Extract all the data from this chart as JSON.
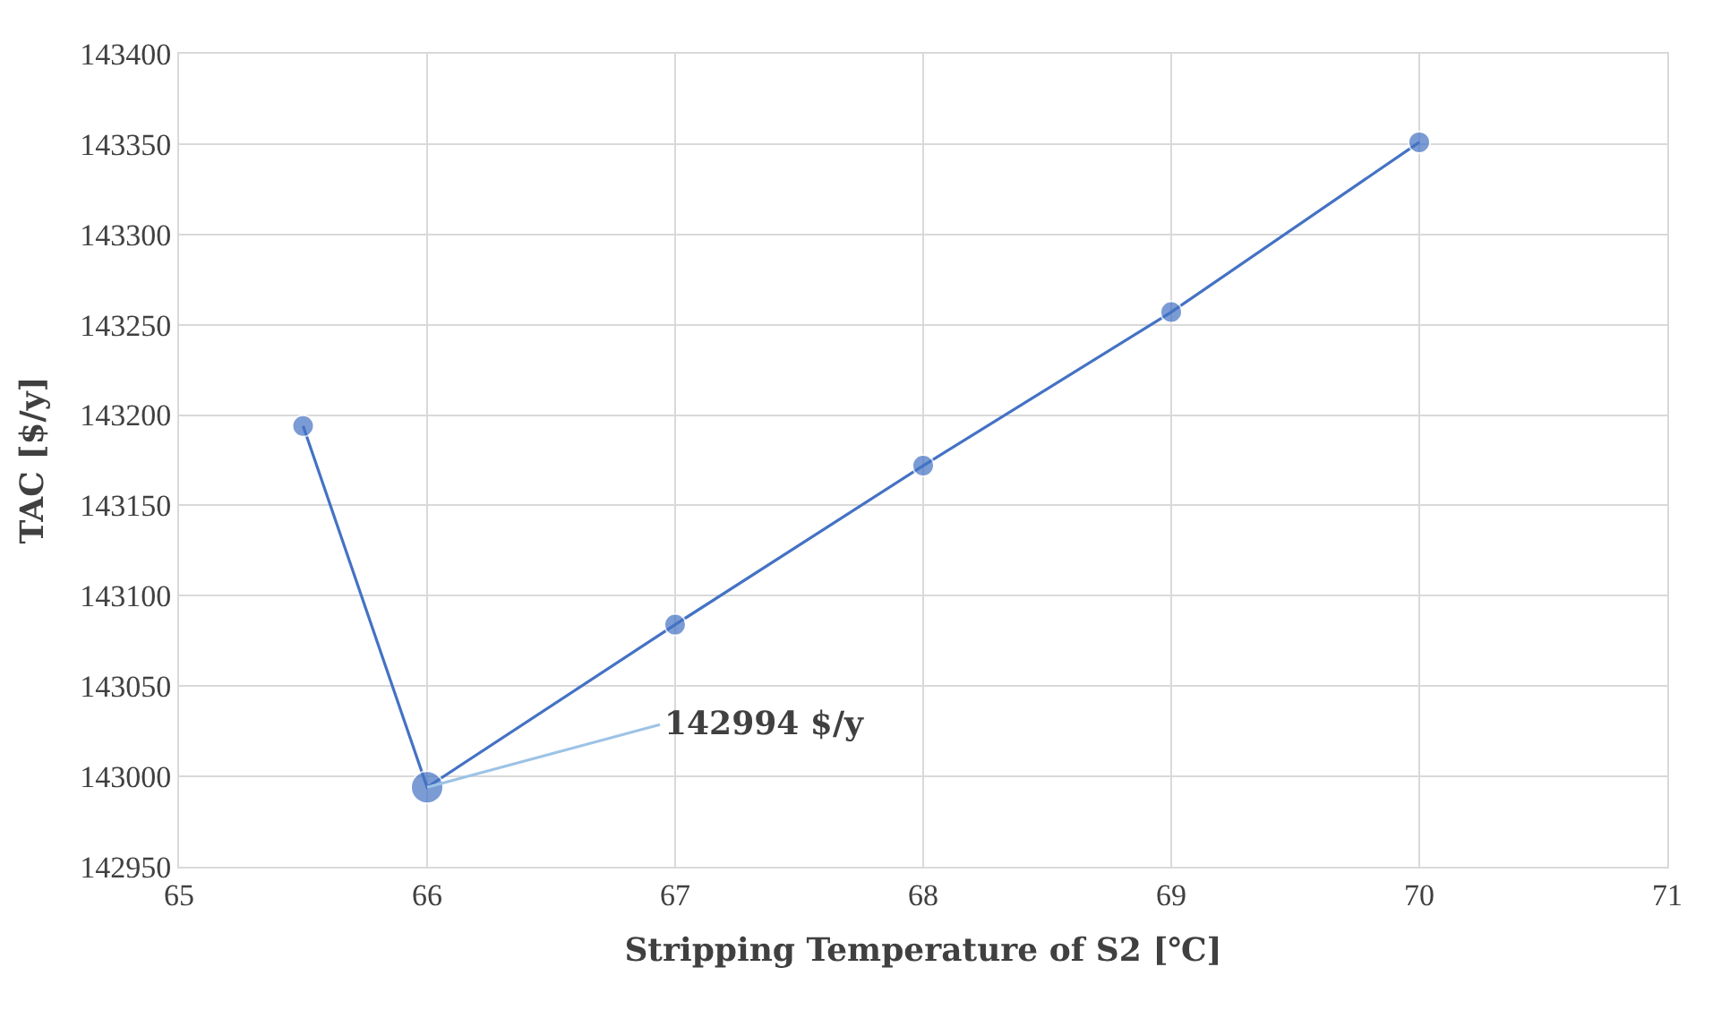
{
  "chart_data": {
    "type": "line",
    "xlabel": "Stripping Temperature of S2 [℃]",
    "ylabel": "TAC [$/y]",
    "x": [
      65.5,
      66,
      67,
      68,
      69,
      70
    ],
    "series": [
      {
        "color": "#4472c4",
        "values": [
          143194,
          142994,
          143084,
          143172,
          143257,
          143351
        ]
      }
    ],
    "xlim": [
      65,
      71
    ],
    "xticks": [
      65,
      66,
      67,
      68,
      69,
      70,
      71
    ],
    "ylim": [
      142950,
      143400
    ],
    "yticks": [
      142950,
      143000,
      143050,
      143100,
      143150,
      143200,
      143250,
      143300,
      143350,
      143400
    ],
    "grid": true,
    "marker": "circle",
    "line_style": "solid",
    "annotations": [
      {
        "text": "142994 $/y",
        "x": 66,
        "y": 142994
      }
    ]
  }
}
